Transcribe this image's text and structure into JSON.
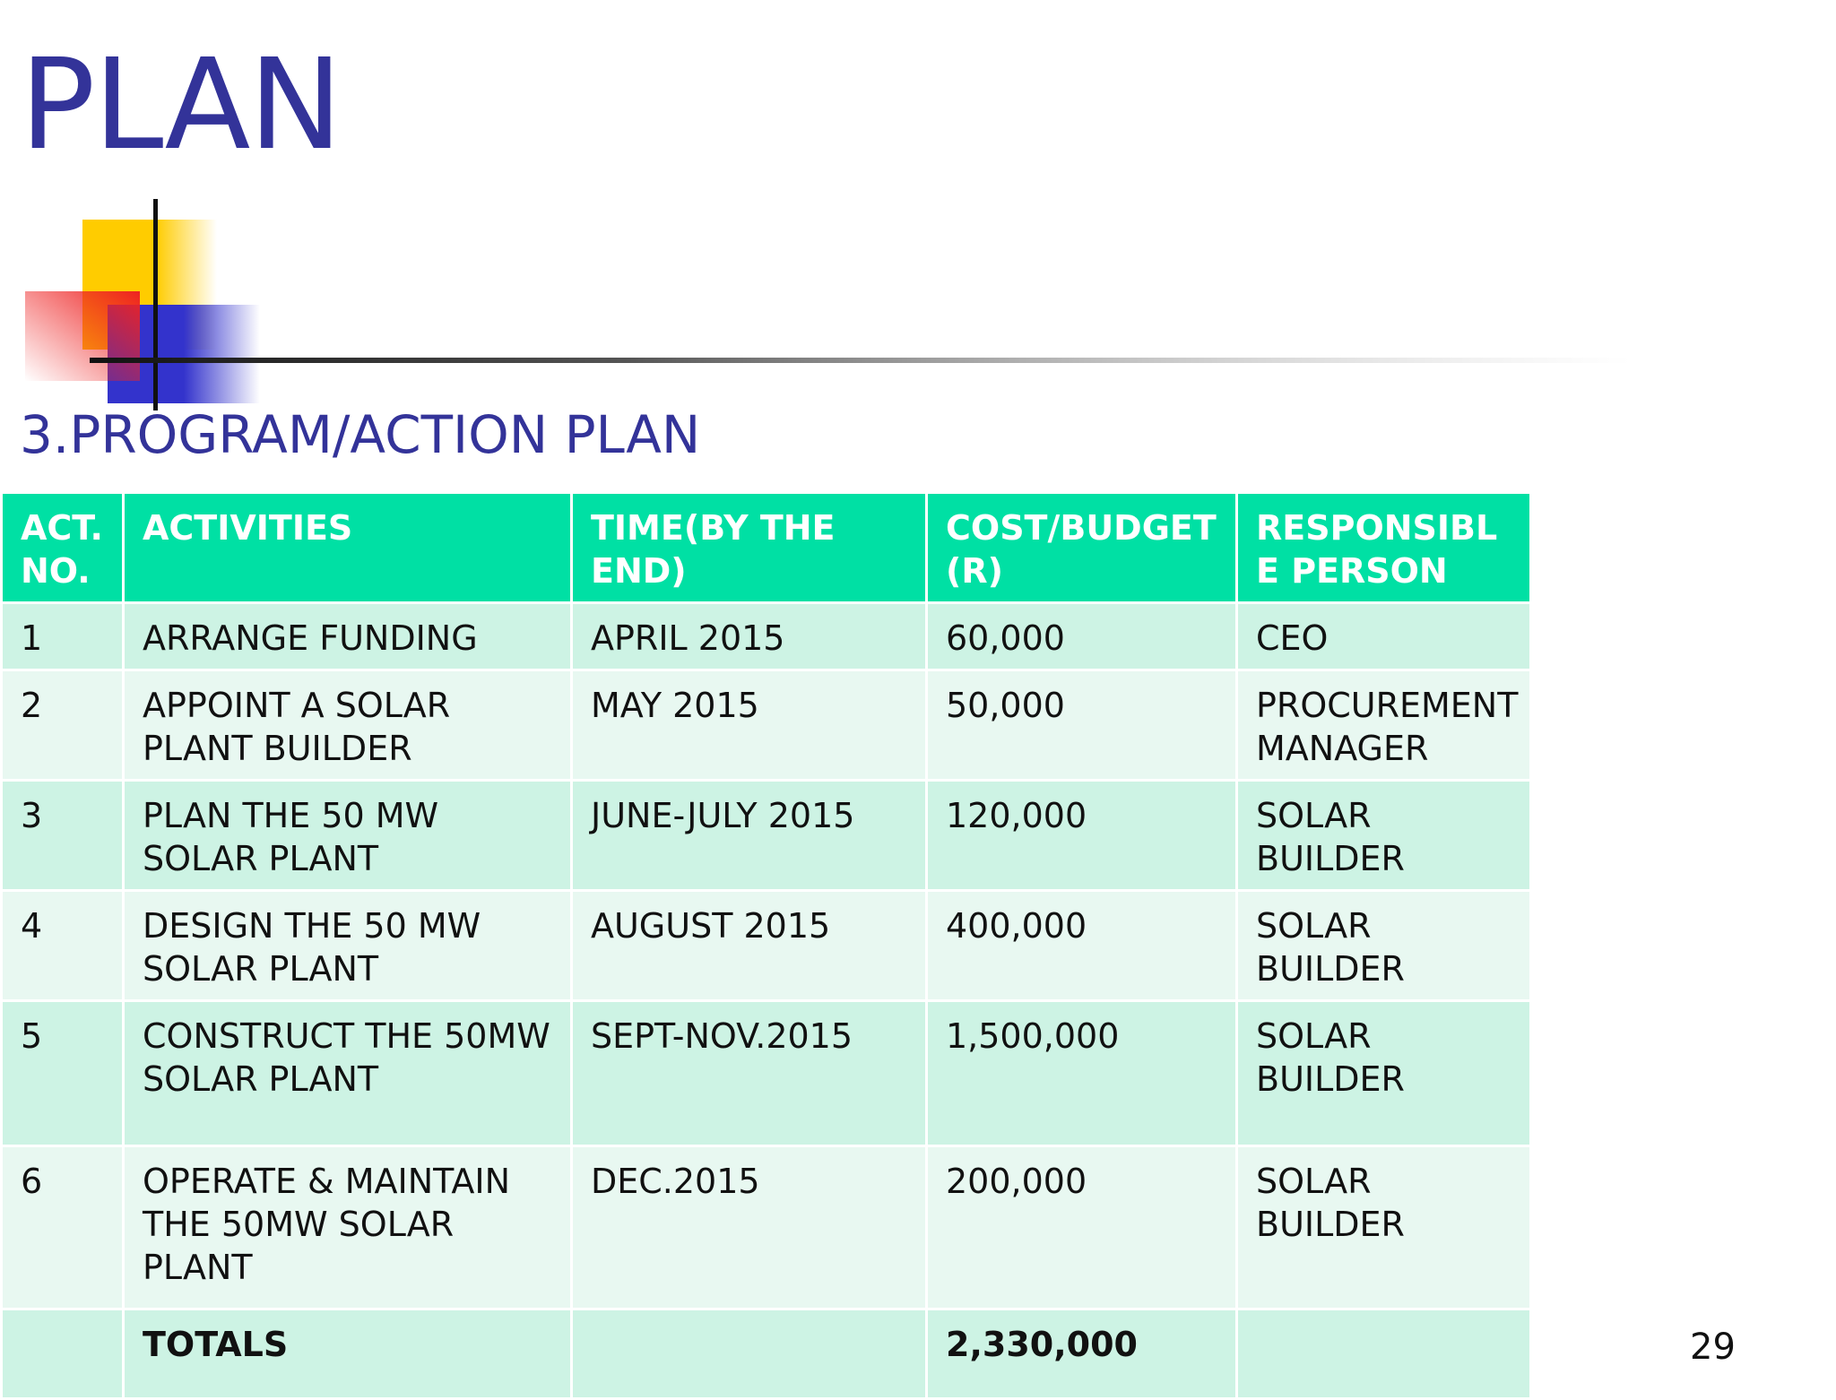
{
  "slide": {
    "title": "PLAN",
    "subtitle": "3.PROGRAM/ACTION PLAN",
    "page_number": "29"
  },
  "colors": {
    "title": "#333399",
    "header_bg": "#00e0a4",
    "row_dark": "#cdf3e4",
    "row_light": "#e8f8f1",
    "deco_yellow": "#ffcc00",
    "deco_red": "#ee3333",
    "deco_blue": "#3333cc"
  },
  "table": {
    "headers": [
      "ACT. NO.",
      "ACTIVITIES",
      "TIME(BY THE END)",
      "COST/BUDGET (R)",
      "RESPONSIBL E PERSON"
    ],
    "rows": [
      {
        "no": "1",
        "activity": "ARRANGE FUNDING",
        "time": "APRIL 2015",
        "cost": "60,000",
        "person": "CEO"
      },
      {
        "no": "2",
        "activity": "APPOINT A SOLAR PLANT BUILDER",
        "time": "MAY 2015",
        "cost": "50,000",
        "person": "PROCUREMENT MANAGER"
      },
      {
        "no": "3",
        "activity": "PLAN THE 50 MW SOLAR PLANT",
        "time": "JUNE-JULY 2015",
        "cost": "120,000",
        "person": "SOLAR BUILDER"
      },
      {
        "no": "4",
        "activity": "DESIGN THE 50 MW SOLAR PLANT",
        "time": "AUGUST 2015",
        "cost": "400,000",
        "person": "SOLAR BUILDER"
      },
      {
        "no": "5",
        "activity": "CONSTRUCT THE 50MW SOLAR PLANT",
        "time": "SEPT-NOV.2015",
        "cost": "1,500,000",
        "person": "SOLAR BUILDER"
      },
      {
        "no": "6",
        "activity": "OPERATE & MAINTAIN THE 50MW SOLAR PLANT",
        "time": "DEC.2015",
        "cost": "200,000",
        "person": "SOLAR BUILDER"
      }
    ],
    "totals": {
      "label": "TOTALS",
      "cost": "2,330,000"
    }
  }
}
